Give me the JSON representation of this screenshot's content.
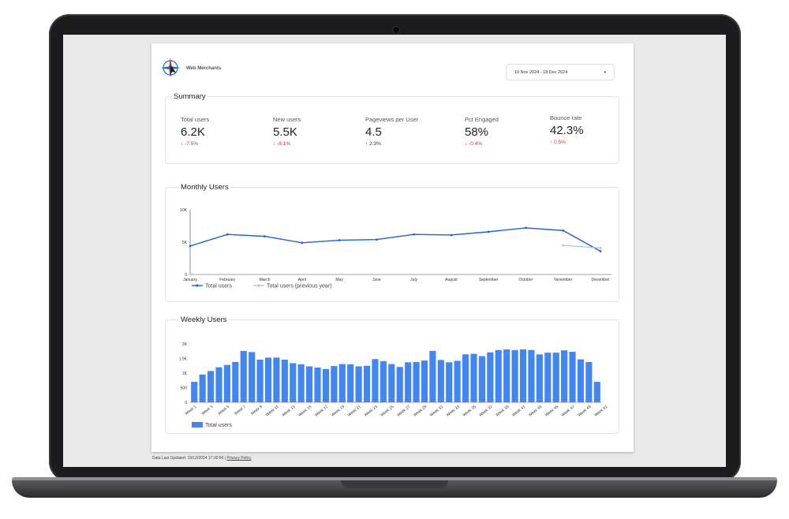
{
  "header": {
    "brand": "Web Merchants",
    "date_range": "19 Nov 2024 - 18 Dec 2024",
    "date_caret": "▾"
  },
  "summary": {
    "title": "Summary",
    "metrics": [
      {
        "label": "Total users",
        "value": "6.2K",
        "delta": "↓ -7.5%",
        "trend": "down"
      },
      {
        "label": "New users",
        "value": "5.5K",
        "delta": "↓ -8.1%",
        "trend": "down"
      },
      {
        "label": "Pageviews per User",
        "value": "4.5",
        "delta": "↑ 2.3%",
        "trend": "up"
      },
      {
        "label": "Pct Engaged",
        "value": "58%",
        "delta": "↓ -0.4%",
        "trend": "down"
      },
      {
        "label": "Bounce rate",
        "value": "42.3%",
        "delta": "↑ 0.5%",
        "trend": "up-bad"
      }
    ]
  },
  "chart_data": [
    {
      "type": "line",
      "title": "Monthly Users",
      "categories": [
        "January",
        "February",
        "March",
        "April",
        "May",
        "June",
        "July",
        "August",
        "September",
        "October",
        "November",
        "December"
      ],
      "y_ticks": [
        "0",
        "5K",
        "10K"
      ],
      "ylim": [
        0,
        10000
      ],
      "series": [
        {
          "name": "Total users",
          "color": "#1a62d6",
          "values": [
            4400,
            6200,
            5900,
            4900,
            5300,
            5400,
            6200,
            6100,
            6600,
            7200,
            6800,
            3600
          ]
        },
        {
          "name": "Total users (previous year)",
          "color": "#a8c3ef",
          "values": [
            null,
            null,
            null,
            null,
            null,
            null,
            null,
            null,
            null,
            null,
            4500,
            4100
          ]
        }
      ],
      "legend": "bottom-left"
    },
    {
      "type": "bar",
      "title": "Weekly Users",
      "y_ticks": [
        "0",
        "500",
        "1K",
        "1.5K",
        "2K"
      ],
      "ylim": [
        0,
        2000
      ],
      "x_labels": [
        "Week 1",
        "Week 3",
        "Week 5",
        "Week 7",
        "Week 9",
        "Week 11",
        "Week 13",
        "Week 15",
        "Week 17",
        "Week 19",
        "Week 21",
        "Week 23",
        "Week 25",
        "Week 27",
        "Week 29",
        "Week 31",
        "Week 33",
        "Week 35",
        "Week 37",
        "Week 39",
        "Week 41",
        "Week 43",
        "Week 45",
        "Week 47",
        "Week 49",
        "Week 51"
      ],
      "series": [
        {
          "name": "Total users",
          "color": "#4285f4",
          "values": [
            700,
            950,
            1070,
            1200,
            1280,
            1380,
            1760,
            1720,
            1460,
            1530,
            1530,
            1460,
            1340,
            1300,
            1230,
            1190,
            1140,
            1240,
            1310,
            1300,
            1230,
            1250,
            1480,
            1410,
            1310,
            1210,
            1370,
            1380,
            1430,
            1760,
            1450,
            1370,
            1420,
            1640,
            1660,
            1580,
            1710,
            1790,
            1810,
            1790,
            1810,
            1790,
            1640,
            1700,
            1700,
            1780,
            1730,
            1470,
            1380,
            700
          ]
        }
      ],
      "legend": "bottom-left"
    }
  ],
  "footer": {
    "updated": "Data Last Updated: 19/12/2024 17:30:56",
    "separator": " | ",
    "privacy": "Privacy Policy"
  }
}
